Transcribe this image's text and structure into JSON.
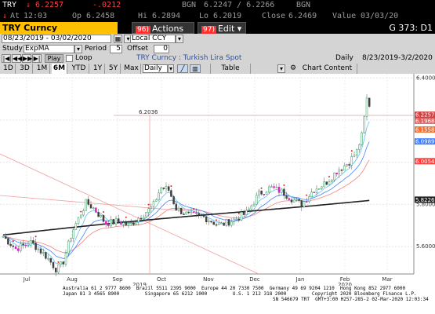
{
  "quote": {
    "ticker": "TRY",
    "last": "6.2257",
    "change": "-.0212",
    "src": "BGN",
    "bid_ask": "6.2247 / 6.2266",
    "src2": "BGN",
    "at_label": "At",
    "time": "12:03",
    "op_label": "Op",
    "open": "6.2458",
    "hi_label": "Hi",
    "high": "6.2894",
    "lo_label": "Lo",
    "low": "6.2019",
    "close_label": "Close",
    "close": "6.2469",
    "value_label": "Value",
    "value_date": "03/03/20"
  },
  "menubar": {
    "security": "TRY Curncy",
    "actions_num": "96)",
    "actions_label": "Actions",
    "edit_num": "97)",
    "edit_label": "Edit",
    "page_id": "G 373: D1"
  },
  "settings": {
    "date_from": "08/23/2019",
    "date_to": "03/02/2020",
    "currency": "Local CCY",
    "study_label": "Study",
    "study": "ExpMA",
    "period_label": "Period",
    "period": "5",
    "offset_label": "Offset",
    "offset": "0",
    "play_label": "Play",
    "loop_label": "Loop",
    "chart_title": "TRY Curncy : Turkish Lira Spot",
    "freq": "Daily",
    "range": "8/23/2019-3/2/2020"
  },
  "tabs": {
    "t1d": "1D",
    "t3d": "3D",
    "t1m": "1M",
    "t6m": "6M",
    "tytd": "YTD",
    "t1y": "1Y",
    "t5y": "5Y",
    "tmax": "Max",
    "daily": "Daily",
    "table": "Table",
    "chart_content": "Chart Content"
  },
  "chart_data": {
    "type": "candlestick",
    "ylim": [
      5.47,
      6.42
    ],
    "y_ticks": [
      "6.4000",
      "6.2000",
      "6.0000",
      "5.8000",
      "5.6000"
    ],
    "x_ticks": [
      "Jul",
      "Aug",
      "Sep",
      "Oct",
      "Nov",
      "Dec",
      "Jan",
      "Feb",
      "Mar"
    ],
    "x_years": [
      "2019",
      "2020"
    ],
    "price_labels": {
      "last": "6.2257",
      "l2": "6.1968",
      "l3": "6.1558",
      "l4": "6.0989",
      "l5": "6.0054",
      "l6": "5.8226"
    },
    "ref_label": "6.2036",
    "colors": {
      "last": "#d04040",
      "l2": "#e06060",
      "l3": "#f07030",
      "l4": "#4080ff",
      "l5": "#ff4040",
      "l6": "#202020"
    }
  },
  "footer": {
    "line1": "Australia 61 2 9777 8600  Brazil 5511 2395 9000  Europe 44 20 7330 7500  Germany 49 69 9204 1210  Hong Kong 852 2977 6000",
    "line2": "Japan 81 3 4565 8900         Singapore 65 6212 1000         U.S. 1 212 318 2000         Copyright 2020 Bloomberg Finance L.P.",
    "line3": "SN 546679 TRT  GMT+3:00 H257-285-2 02-Mar-2020 12:03:34"
  }
}
